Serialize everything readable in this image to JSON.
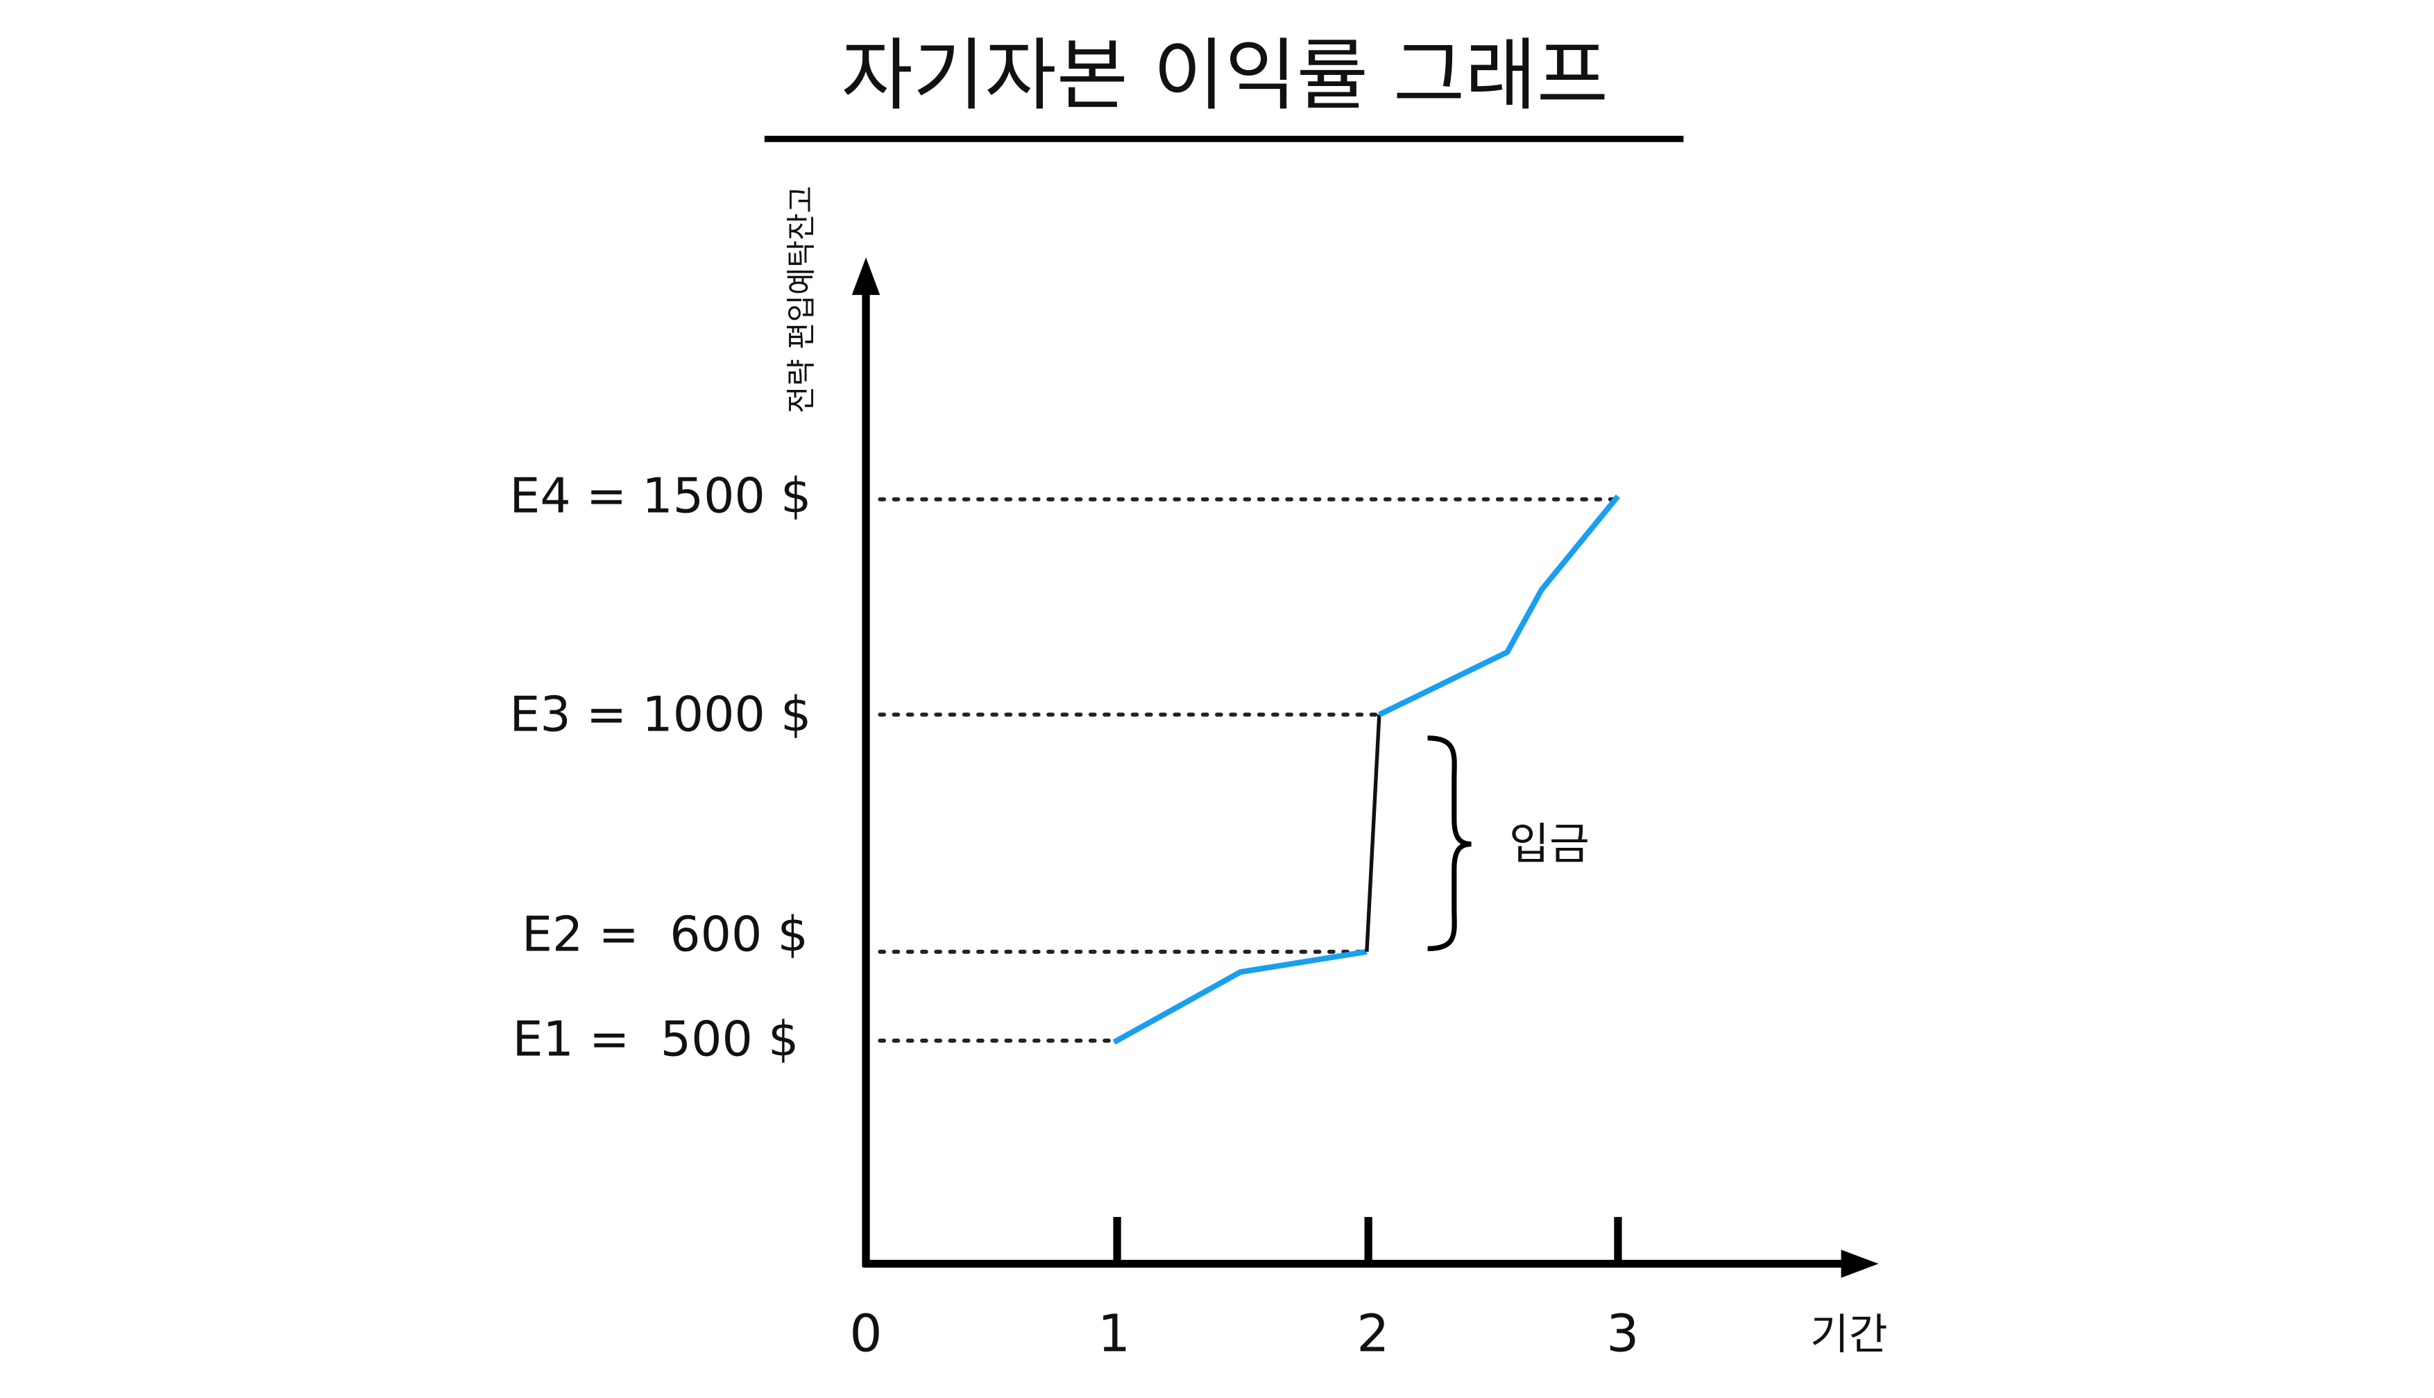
{
  "title": "자기자본 이익률 그래프",
  "y_axis": {
    "label": "전략 편입예탁잔고"
  },
  "x_axis": {
    "label": "기간",
    "ticks": [
      "0",
      "1",
      "2",
      "3"
    ]
  },
  "levels": [
    "E4 = 1500 $",
    "E3 = 1000 $",
    "E2 =  600 $",
    "E1 =  500 $"
  ],
  "bracket_label": "입금"
}
